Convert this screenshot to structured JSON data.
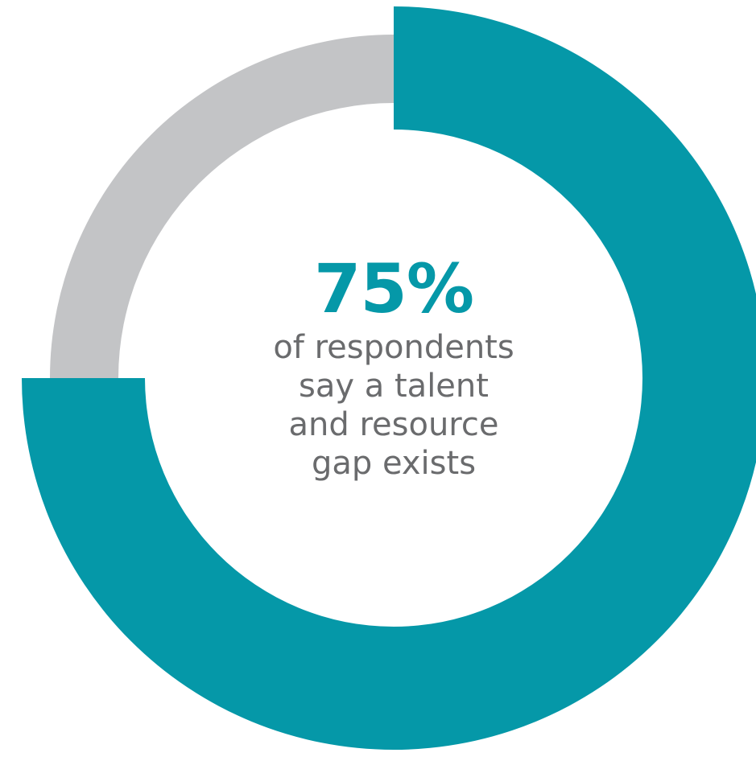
{
  "chart_data": {
    "type": "pie",
    "style": "donut",
    "slices": [
      {
        "label": "say a talent and resource gap exists",
        "value": 75,
        "color": "#0598a8"
      },
      {
        "label": "",
        "value": 25,
        "color": "#c3c4c6"
      }
    ]
  },
  "headline": {
    "value": "75%",
    "color": "#0598a8"
  },
  "caption": {
    "lines": [
      "of respondents",
      "say a talent",
      "and resource",
      "gap exists"
    ],
    "color": "#6a6b6d"
  }
}
